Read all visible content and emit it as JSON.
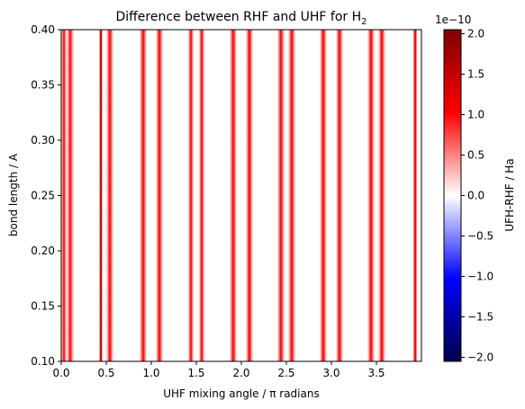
{
  "chart_data": {
    "type": "heatmap",
    "title": "Difference between RHF and UHF for H",
    "title_subscript": "2",
    "xlabel": "UHF mixing angle / π radians",
    "ylabel": "bond length / A",
    "colorbar_label": "UFH-RHF / Ha",
    "colorbar_offset_text": "1e−10",
    "colormap": "seismic",
    "colormap_stops": [
      "#00004c",
      "#0000ff",
      "#ffffff",
      "#ff0000",
      "#7f0000"
    ],
    "xlim": [
      0,
      4
    ],
    "ylim": [
      0.1,
      0.4
    ],
    "zlim": [
      -2.05,
      2.05
    ],
    "x_ticks": [
      0.0,
      0.5,
      1.0,
      1.5,
      2.0,
      2.5,
      3.0,
      3.5
    ],
    "x_tick_labels": [
      "0.0",
      "0.5",
      "1.0",
      "1.5",
      "2.0",
      "2.5",
      "3.0",
      "3.5"
    ],
    "y_ticks": [
      0.1,
      0.15,
      0.2,
      0.25,
      0.3,
      0.35,
      0.4
    ],
    "y_tick_labels": [
      "0.10",
      "0.15",
      "0.20",
      "0.25",
      "0.30",
      "0.35",
      "0.40"
    ],
    "colorbar_ticks": [
      -2.0,
      -1.5,
      -1.0,
      -0.5,
      0.0,
      0.5,
      1.0,
      1.5,
      2.0
    ],
    "colorbar_tick_labels": [
      "−2.0",
      "−1.5",
      "−1.0",
      "−0.5",
      "0.0",
      "0.5",
      "1.0",
      "1.5",
      "2.0"
    ],
    "bands": [
      {
        "center": 0.03,
        "peak": 1.1,
        "width": 0.02
      },
      {
        "center": 0.1,
        "peak": 1.1,
        "width": 0.025
      },
      {
        "center": 0.44,
        "peak": 2.0,
        "width": 0.012
      },
      {
        "center": 0.54,
        "peak": 1.2,
        "width": 0.025
      },
      {
        "center": 0.91,
        "peak": 1.2,
        "width": 0.025
      },
      {
        "center": 1.09,
        "peak": 1.2,
        "width": 0.025
      },
      {
        "center": 1.44,
        "peak": 1.2,
        "width": 0.02
      },
      {
        "center": 1.56,
        "peak": 1.2,
        "width": 0.02
      },
      {
        "center": 1.91,
        "peak": 1.2,
        "width": 0.025
      },
      {
        "center": 2.09,
        "peak": 1.2,
        "width": 0.025
      },
      {
        "center": 2.44,
        "peak": 1.2,
        "width": 0.025
      },
      {
        "center": 2.56,
        "peak": 1.2,
        "width": 0.025
      },
      {
        "center": 2.91,
        "peak": 1.2,
        "width": 0.025
      },
      {
        "center": 3.09,
        "peak": 1.2,
        "width": 0.025
      },
      {
        "center": 3.44,
        "peak": 1.2,
        "width": 0.025
      },
      {
        "center": 3.56,
        "peak": 1.2,
        "width": 0.025
      },
      {
        "center": 3.93,
        "peak": 1.6,
        "width": 0.015
      }
    ]
  }
}
